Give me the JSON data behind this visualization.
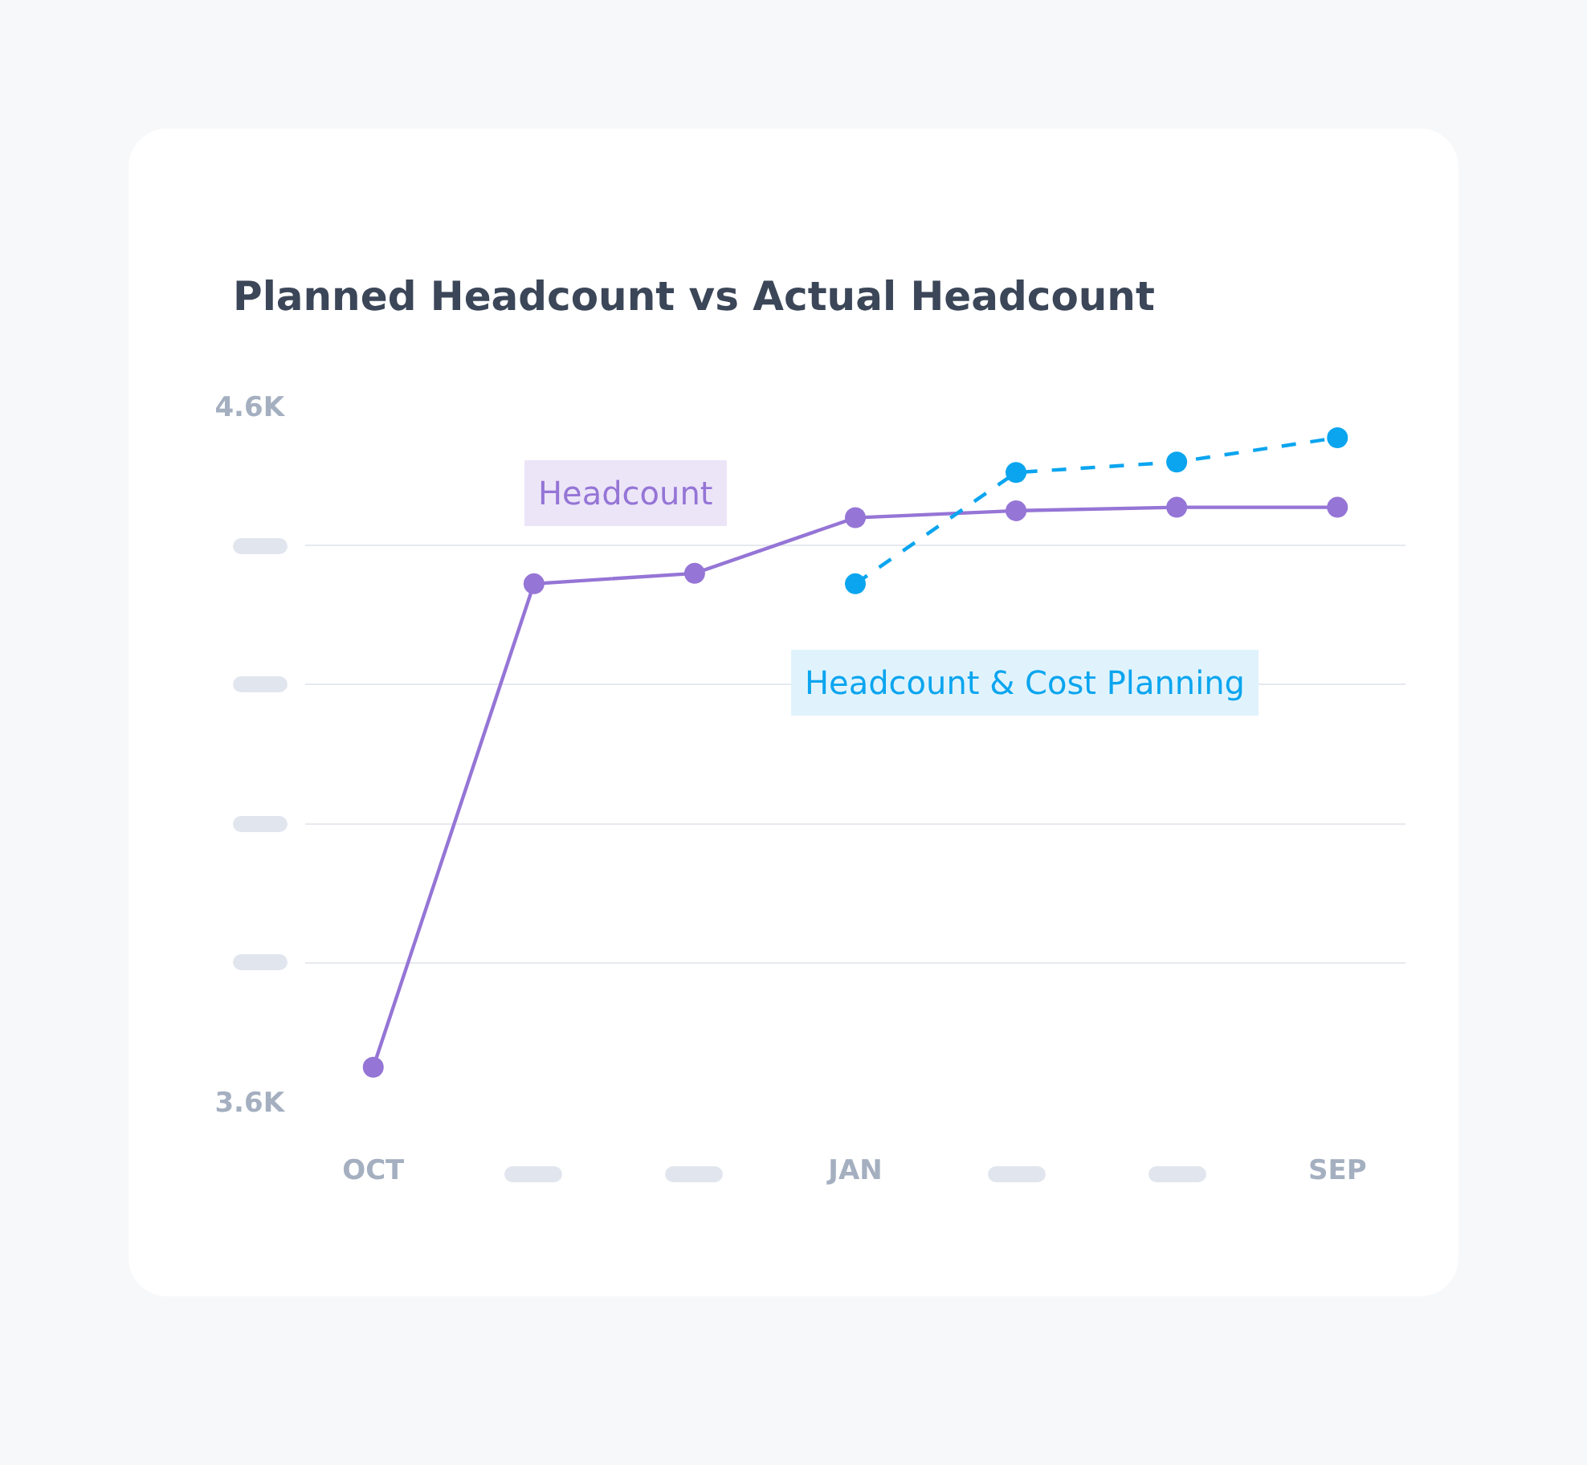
{
  "chart_data": {
    "type": "line",
    "title": "Planned Headcount vs Actual Headcount",
    "categories": [
      "OCT",
      null,
      null,
      "JAN",
      null,
      null,
      "SEP"
    ],
    "ylim": [
      3600,
      4600
    ],
    "yticks": [
      {
        "value": 3600,
        "label": "3.6K"
      },
      {
        "value": 3800,
        "label": null
      },
      {
        "value": 4000,
        "label": null
      },
      {
        "value": 4200,
        "label": null
      },
      {
        "value": 4400,
        "label": null
      },
      {
        "value": 4600,
        "label": "4.6K"
      }
    ],
    "grid": "y",
    "marker": "circle",
    "legend": false,
    "series": [
      {
        "name": "Headcount",
        "color": "#9575d6",
        "line_style": "solid",
        "values": [
          3650,
          4345,
          4360,
          4440,
          4450,
          4455,
          4455
        ]
      },
      {
        "name": "Headcount & Cost Planning",
        "color": "#0ba5ef",
        "line_style": "dashed",
        "values": [
          null,
          null,
          null,
          4345,
          4505,
          4520,
          4555
        ]
      }
    ]
  }
}
